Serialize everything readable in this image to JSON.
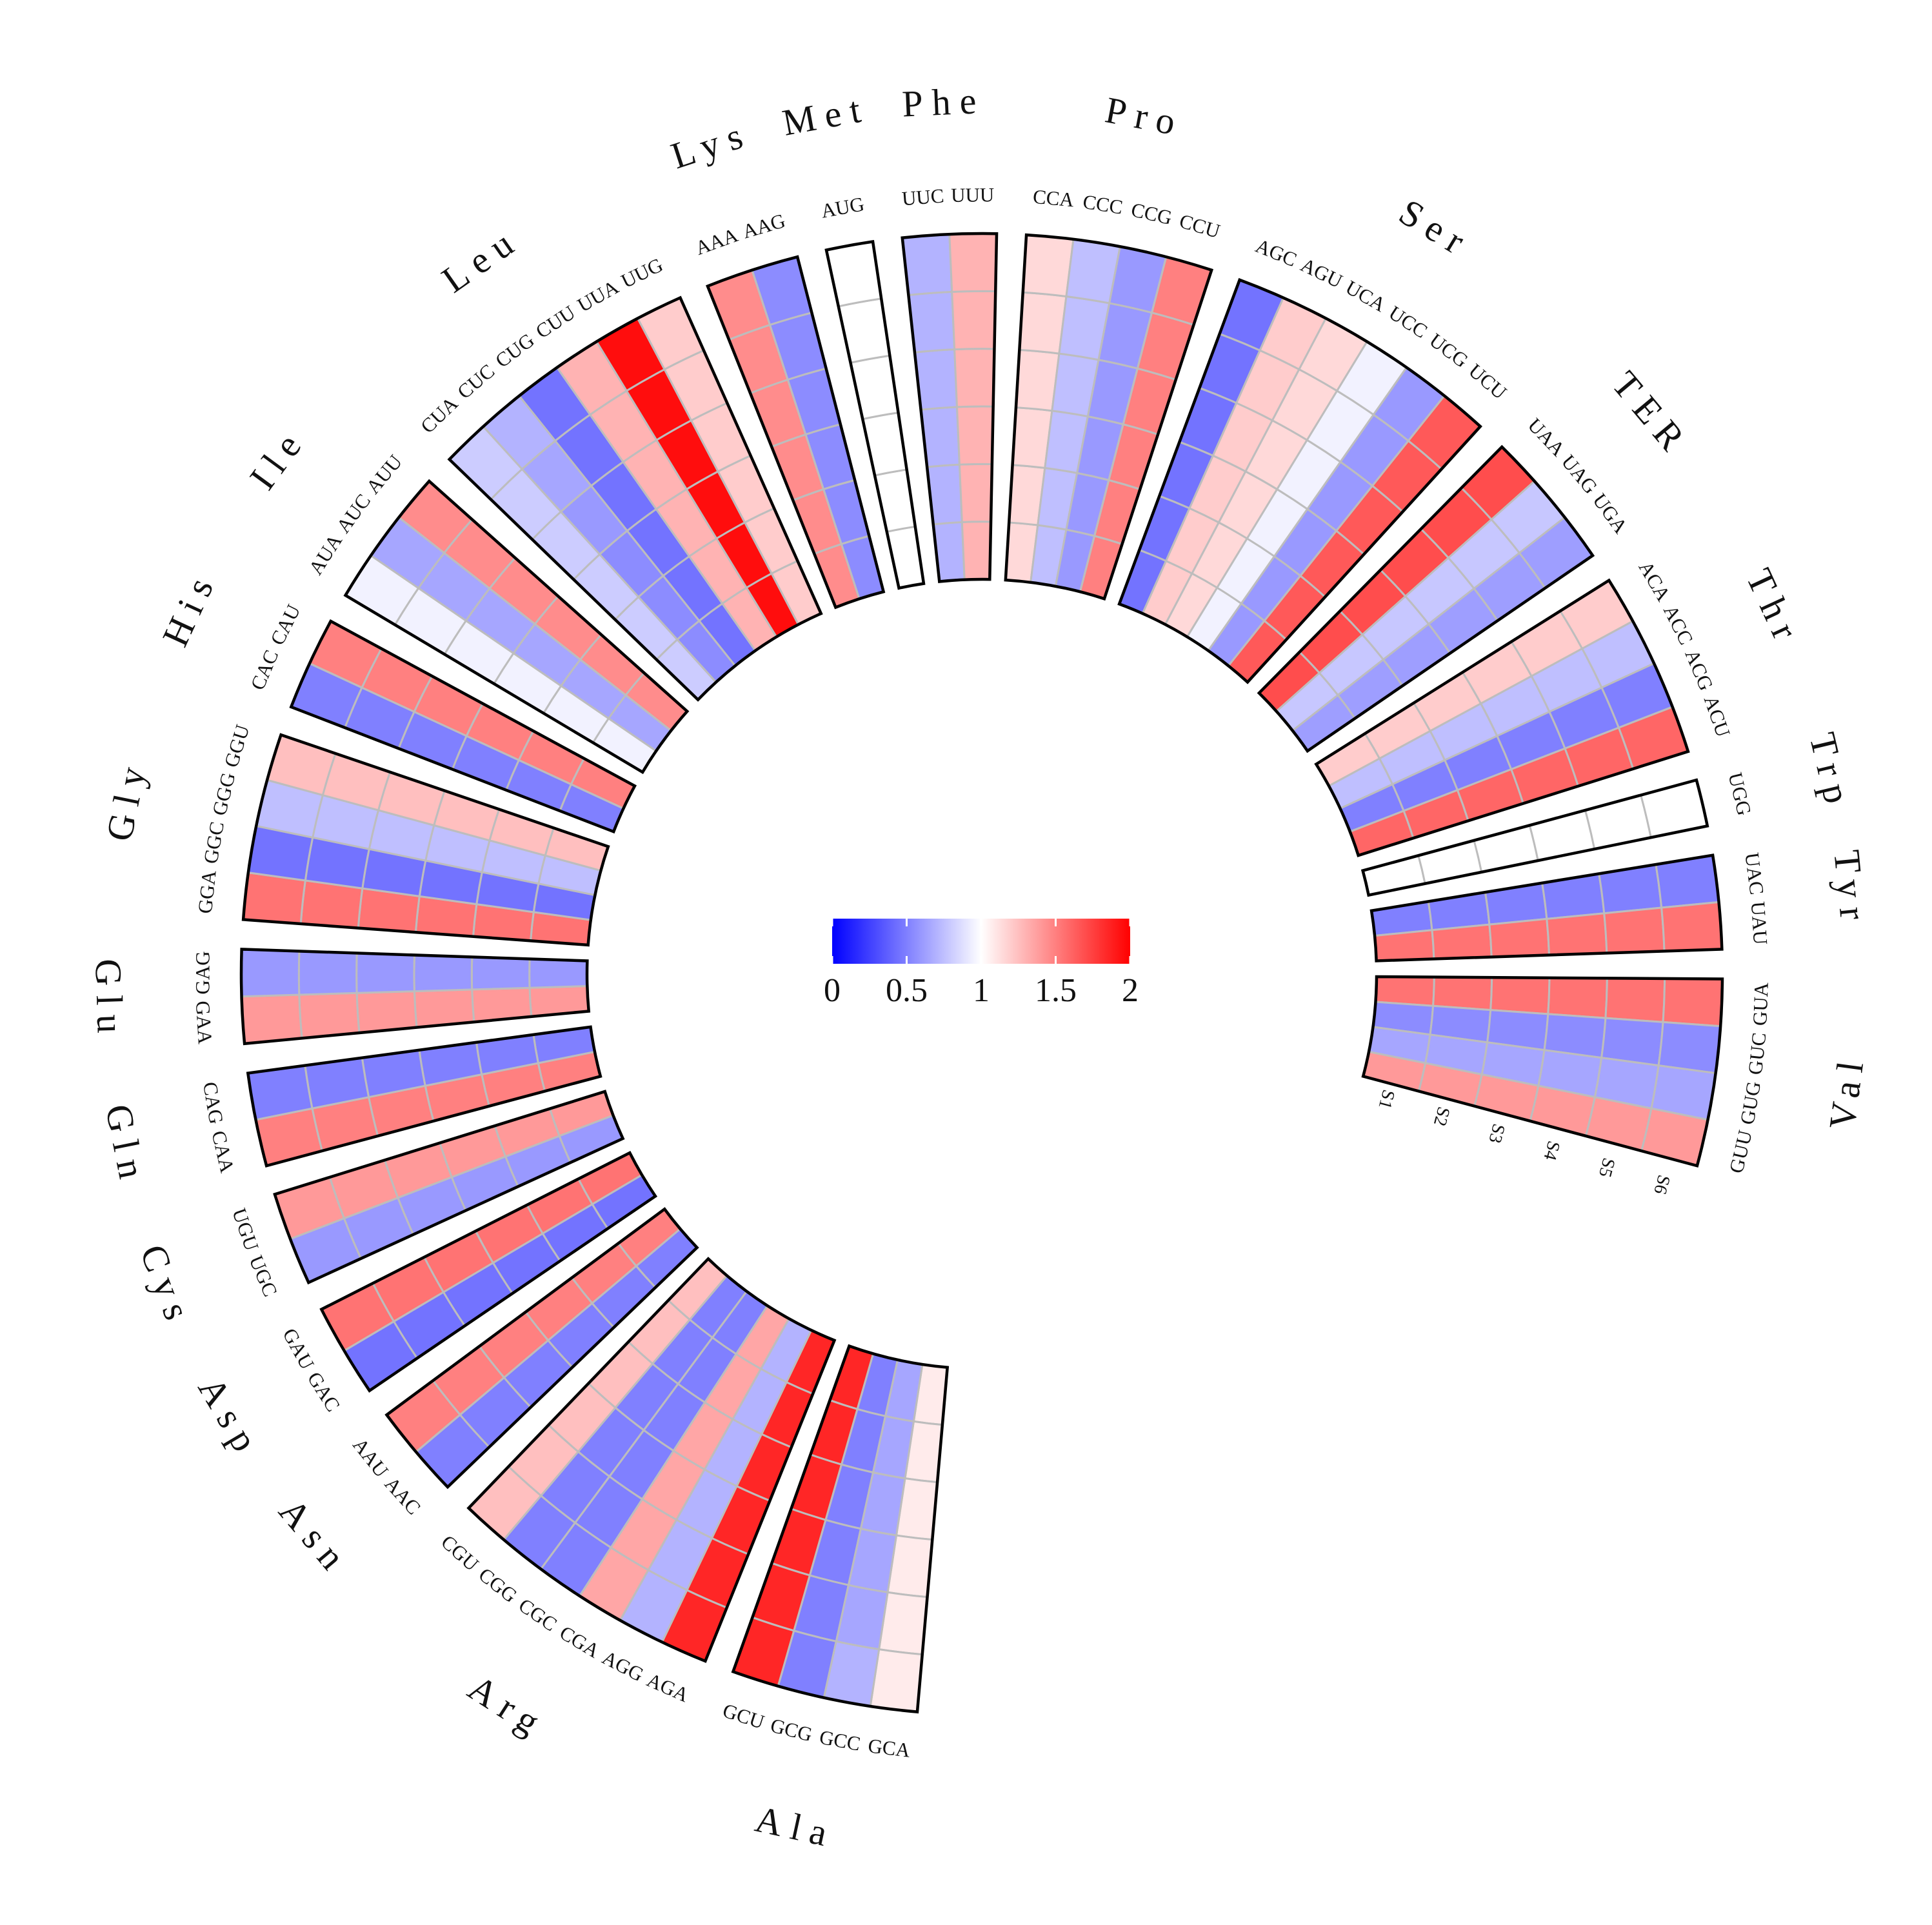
{
  "chart_data": {
    "type": "heatmap",
    "layout": "circular",
    "title": "",
    "samples": [
      "S1",
      "S2",
      "S3",
      "S4",
      "S5",
      "S6"
    ],
    "colorbar": {
      "min": 0,
      "max": 2,
      "ticks": [
        "0",
        "0.5",
        "1",
        "1.5",
        "2"
      ],
      "low_color": "#0000ff",
      "mid_color": "#ffffff",
      "high_color": "#ff0000"
    },
    "groups": [
      {
        "aa": "Ala",
        "codons": [
          {
            "codon": "GCA",
            "values": [
              1.08,
              1.08,
              1.08,
              1.08,
              1.08,
              1.08
            ]
          },
          {
            "codon": "GCC",
            "values": [
              0.65,
              0.65,
              0.65,
              0.65,
              0.65,
              0.7
            ]
          },
          {
            "codon": "GCG",
            "values": [
              0.5,
              0.5,
              0.5,
              0.5,
              0.5,
              0.5
            ]
          },
          {
            "codon": "GCU",
            "values": [
              1.85,
              1.85,
              1.85,
              1.85,
              1.85,
              1.85
            ]
          }
        ]
      },
      {
        "aa": "Arg",
        "codons": [
          {
            "codon": "AGA",
            "values": [
              1.85,
              1.85,
              1.85,
              1.85,
              1.85,
              1.85
            ]
          },
          {
            "codon": "AGG",
            "values": [
              0.7,
              0.7,
              0.7,
              0.7,
              0.7,
              0.7
            ]
          },
          {
            "codon": "CGA",
            "values": [
              1.35,
              1.35,
              1.35,
              1.35,
              1.35,
              1.35
            ]
          },
          {
            "codon": "CGC",
            "values": [
              0.5,
              0.5,
              0.5,
              0.5,
              0.5,
              0.5
            ]
          },
          {
            "codon": "CGG",
            "values": [
              0.5,
              0.5,
              0.5,
              0.5,
              0.5,
              0.5
            ]
          },
          {
            "codon": "CGU",
            "values": [
              1.25,
              1.25,
              1.25,
              1.25,
              1.25,
              1.25
            ]
          }
        ]
      },
      {
        "aa": "Asn",
        "codons": [
          {
            "codon": "AAC",
            "values": [
              0.5,
              0.5,
              0.5,
              0.5,
              0.5,
              0.5
            ]
          },
          {
            "codon": "AAU",
            "values": [
              1.5,
              1.5,
              1.5,
              1.5,
              1.5,
              1.5
            ]
          }
        ]
      },
      {
        "aa": "Asp",
        "codons": [
          {
            "codon": "GAC",
            "values": [
              0.45,
              0.45,
              0.45,
              0.45,
              0.45,
              0.45
            ]
          },
          {
            "codon": "GAU",
            "values": [
              1.55,
              1.55,
              1.55,
              1.55,
              1.55,
              1.55
            ]
          }
        ]
      },
      {
        "aa": "Cys",
        "codons": [
          {
            "codon": "UGC",
            "values": [
              0.6,
              0.6,
              0.6,
              0.6,
              0.6,
              0.6
            ]
          },
          {
            "codon": "UGU",
            "values": [
              1.4,
              1.4,
              1.4,
              1.4,
              1.4,
              1.4
            ]
          }
        ]
      },
      {
        "aa": "Gln",
        "codons": [
          {
            "codon": "CAA",
            "values": [
              1.5,
              1.5,
              1.5,
              1.5,
              1.5,
              1.5
            ]
          },
          {
            "codon": "CAG",
            "values": [
              0.5,
              0.5,
              0.5,
              0.5,
              0.5,
              0.5
            ]
          }
        ]
      },
      {
        "aa": "Glu",
        "codons": [
          {
            "codon": "GAA",
            "values": [
              1.4,
              1.4,
              1.4,
              1.4,
              1.4,
              1.4
            ]
          },
          {
            "codon": "GAG",
            "values": [
              0.6,
              0.6,
              0.6,
              0.6,
              0.6,
              0.6
            ]
          }
        ]
      },
      {
        "aa": "Gly",
        "codons": [
          {
            "codon": "GGA",
            "values": [
              1.55,
              1.55,
              1.55,
              1.55,
              1.55,
              1.55
            ]
          },
          {
            "codon": "GGC",
            "values": [
              0.45,
              0.45,
              0.45,
              0.45,
              0.45,
              0.45
            ]
          },
          {
            "codon": "GGG",
            "values": [
              0.75,
              0.75,
              0.75,
              0.75,
              0.75,
              0.75
            ]
          },
          {
            "codon": "GGU",
            "values": [
              1.25,
              1.25,
              1.25,
              1.25,
              1.25,
              1.25
            ]
          }
        ]
      },
      {
        "aa": "His",
        "codons": [
          {
            "codon": "CAC",
            "values": [
              0.5,
              0.5,
              0.5,
              0.5,
              0.5,
              0.5
            ]
          },
          {
            "codon": "CAU",
            "values": [
              1.5,
              1.5,
              1.5,
              1.5,
              1.5,
              1.5
            ]
          }
        ]
      },
      {
        "aa": "Ile",
        "codons": [
          {
            "codon": "AUA",
            "values": [
              0.95,
              0.95,
              0.95,
              0.95,
              0.95,
              0.95
            ]
          },
          {
            "codon": "AUC",
            "values": [
              0.65,
              0.65,
              0.65,
              0.65,
              0.65,
              0.65
            ]
          },
          {
            "codon": "AUU",
            "values": [
              1.45,
              1.45,
              1.45,
              1.45,
              1.45,
              1.45
            ]
          }
        ]
      },
      {
        "aa": "Leu",
        "codons": [
          {
            "codon": "CUA",
            "values": [
              0.8,
              0.8,
              0.8,
              0.8,
              0.8,
              0.8
            ]
          },
          {
            "codon": "CUC",
            "values": [
              0.55,
              0.55,
              0.55,
              0.6,
              0.65,
              0.7
            ]
          },
          {
            "codon": "CUG",
            "values": [
              0.45,
              0.45,
              0.45,
              0.45,
              0.45,
              0.45
            ]
          },
          {
            "codon": "CUU",
            "values": [
              1.3,
              1.3,
              1.3,
              1.3,
              1.3,
              1.3
            ]
          },
          {
            "codon": "UUA",
            "values": [
              1.95,
              1.95,
              1.95,
              1.95,
              1.95,
              1.95
            ]
          },
          {
            "codon": "UUG",
            "values": [
              1.2,
              1.2,
              1.2,
              1.2,
              1.2,
              1.2
            ]
          }
        ]
      },
      {
        "aa": "Lys",
        "codons": [
          {
            "codon": "AAA",
            "values": [
              1.45,
              1.45,
              1.45,
              1.45,
              1.45,
              1.45
            ]
          },
          {
            "codon": "AAG",
            "values": [
              0.55,
              0.55,
              0.55,
              0.55,
              0.55,
              0.55
            ]
          }
        ]
      },
      {
        "aa": "Met",
        "codons": [
          {
            "codon": "AUG",
            "values": [
              1,
              1,
              1,
              1,
              1,
              1
            ]
          }
        ]
      },
      {
        "aa": "Phe",
        "codons": [
          {
            "codon": "UUC",
            "values": [
              0.7,
              0.7,
              0.7,
              0.7,
              0.7,
              0.7
            ]
          },
          {
            "codon": "UUU",
            "values": [
              1.3,
              1.3,
              1.3,
              1.3,
              1.3,
              1.3
            ]
          }
        ]
      },
      {
        "aa": "Pro",
        "codons": [
          {
            "codon": "CCA",
            "values": [
              1.15,
              1.15,
              1.15,
              1.15,
              1.15,
              1.15
            ]
          },
          {
            "codon": "CCC",
            "values": [
              0.75,
              0.75,
              0.75,
              0.75,
              0.75,
              0.75
            ]
          },
          {
            "codon": "CCG",
            "values": [
              0.6,
              0.6,
              0.6,
              0.6,
              0.6,
              0.6
            ]
          },
          {
            "codon": "CCU",
            "values": [
              1.5,
              1.5,
              1.5,
              1.5,
              1.5,
              1.5
            ]
          }
        ]
      },
      {
        "aa": "Ser",
        "codons": [
          {
            "codon": "AGC",
            "values": [
              0.45,
              0.45,
              0.45,
              0.45,
              0.45,
              0.45
            ]
          },
          {
            "codon": "AGU",
            "values": [
              1.2,
              1.2,
              1.2,
              1.2,
              1.2,
              1.2
            ]
          },
          {
            "codon": "UCA",
            "values": [
              1.15,
              1.15,
              1.15,
              1.15,
              1.15,
              1.15
            ]
          },
          {
            "codon": "UCC",
            "values": [
              0.95,
              0.95,
              0.95,
              0.95,
              0.95,
              0.95
            ]
          },
          {
            "codon": "UCG",
            "values": [
              0.6,
              0.6,
              0.6,
              0.6,
              0.6,
              0.6
            ]
          },
          {
            "codon": "UCU",
            "values": [
              1.65,
              1.65,
              1.65,
              1.65,
              1.65,
              1.65
            ]
          }
        ]
      },
      {
        "aa": "TER",
        "codons": [
          {
            "codon": "UAA",
            "values": [
              1.7,
              1.7,
              1.7,
              1.7,
              1.7,
              1.7
            ]
          },
          {
            "codon": "UAG",
            "values": [
              0.78,
              0.78,
              0.78,
              0.78,
              0.78,
              0.78
            ]
          },
          {
            "codon": "UGA",
            "values": [
              0.62,
              0.62,
              0.62,
              0.62,
              0.62,
              0.62
            ]
          }
        ]
      },
      {
        "aa": "Thr",
        "codons": [
          {
            "codon": "ACA",
            "values": [
              1.2,
              1.2,
              1.2,
              1.2,
              1.2,
              1.2
            ]
          },
          {
            "codon": "ACC",
            "values": [
              0.75,
              0.75,
              0.75,
              0.75,
              0.75,
              0.75
            ]
          },
          {
            "codon": "ACG",
            "values": [
              0.5,
              0.5,
              0.5,
              0.5,
              0.5,
              0.5
            ]
          },
          {
            "codon": "ACU",
            "values": [
              1.6,
              1.6,
              1.6,
              1.6,
              1.6,
              1.6
            ]
          }
        ]
      },
      {
        "aa": "Trp",
        "codons": [
          {
            "codon": "UGG",
            "values": [
              1,
              1,
              1,
              1,
              1,
              1
            ]
          }
        ]
      },
      {
        "aa": "Tyr",
        "codons": [
          {
            "codon": "UAC",
            "values": [
              0.5,
              0.5,
              0.5,
              0.5,
              0.5,
              0.5
            ]
          },
          {
            "codon": "UAU",
            "values": [
              1.55,
              1.55,
              1.55,
              1.55,
              1.55,
              1.55
            ]
          }
        ]
      },
      {
        "aa": "Val",
        "codons": [
          {
            "codon": "GUA",
            "values": [
              1.55,
              1.55,
              1.55,
              1.55,
              1.55,
              1.55
            ]
          },
          {
            "codon": "GUC",
            "values": [
              0.55,
              0.55,
              0.55,
              0.55,
              0.55,
              0.55
            ]
          },
          {
            "codon": "GUG",
            "values": [
              0.65,
              0.65,
              0.65,
              0.65,
              0.65,
              0.65
            ]
          },
          {
            "codon": "GUU",
            "values": [
              1.4,
              1.4,
              1.4,
              1.4,
              1.4,
              1.4
            ]
          }
        ]
      }
    ]
  }
}
